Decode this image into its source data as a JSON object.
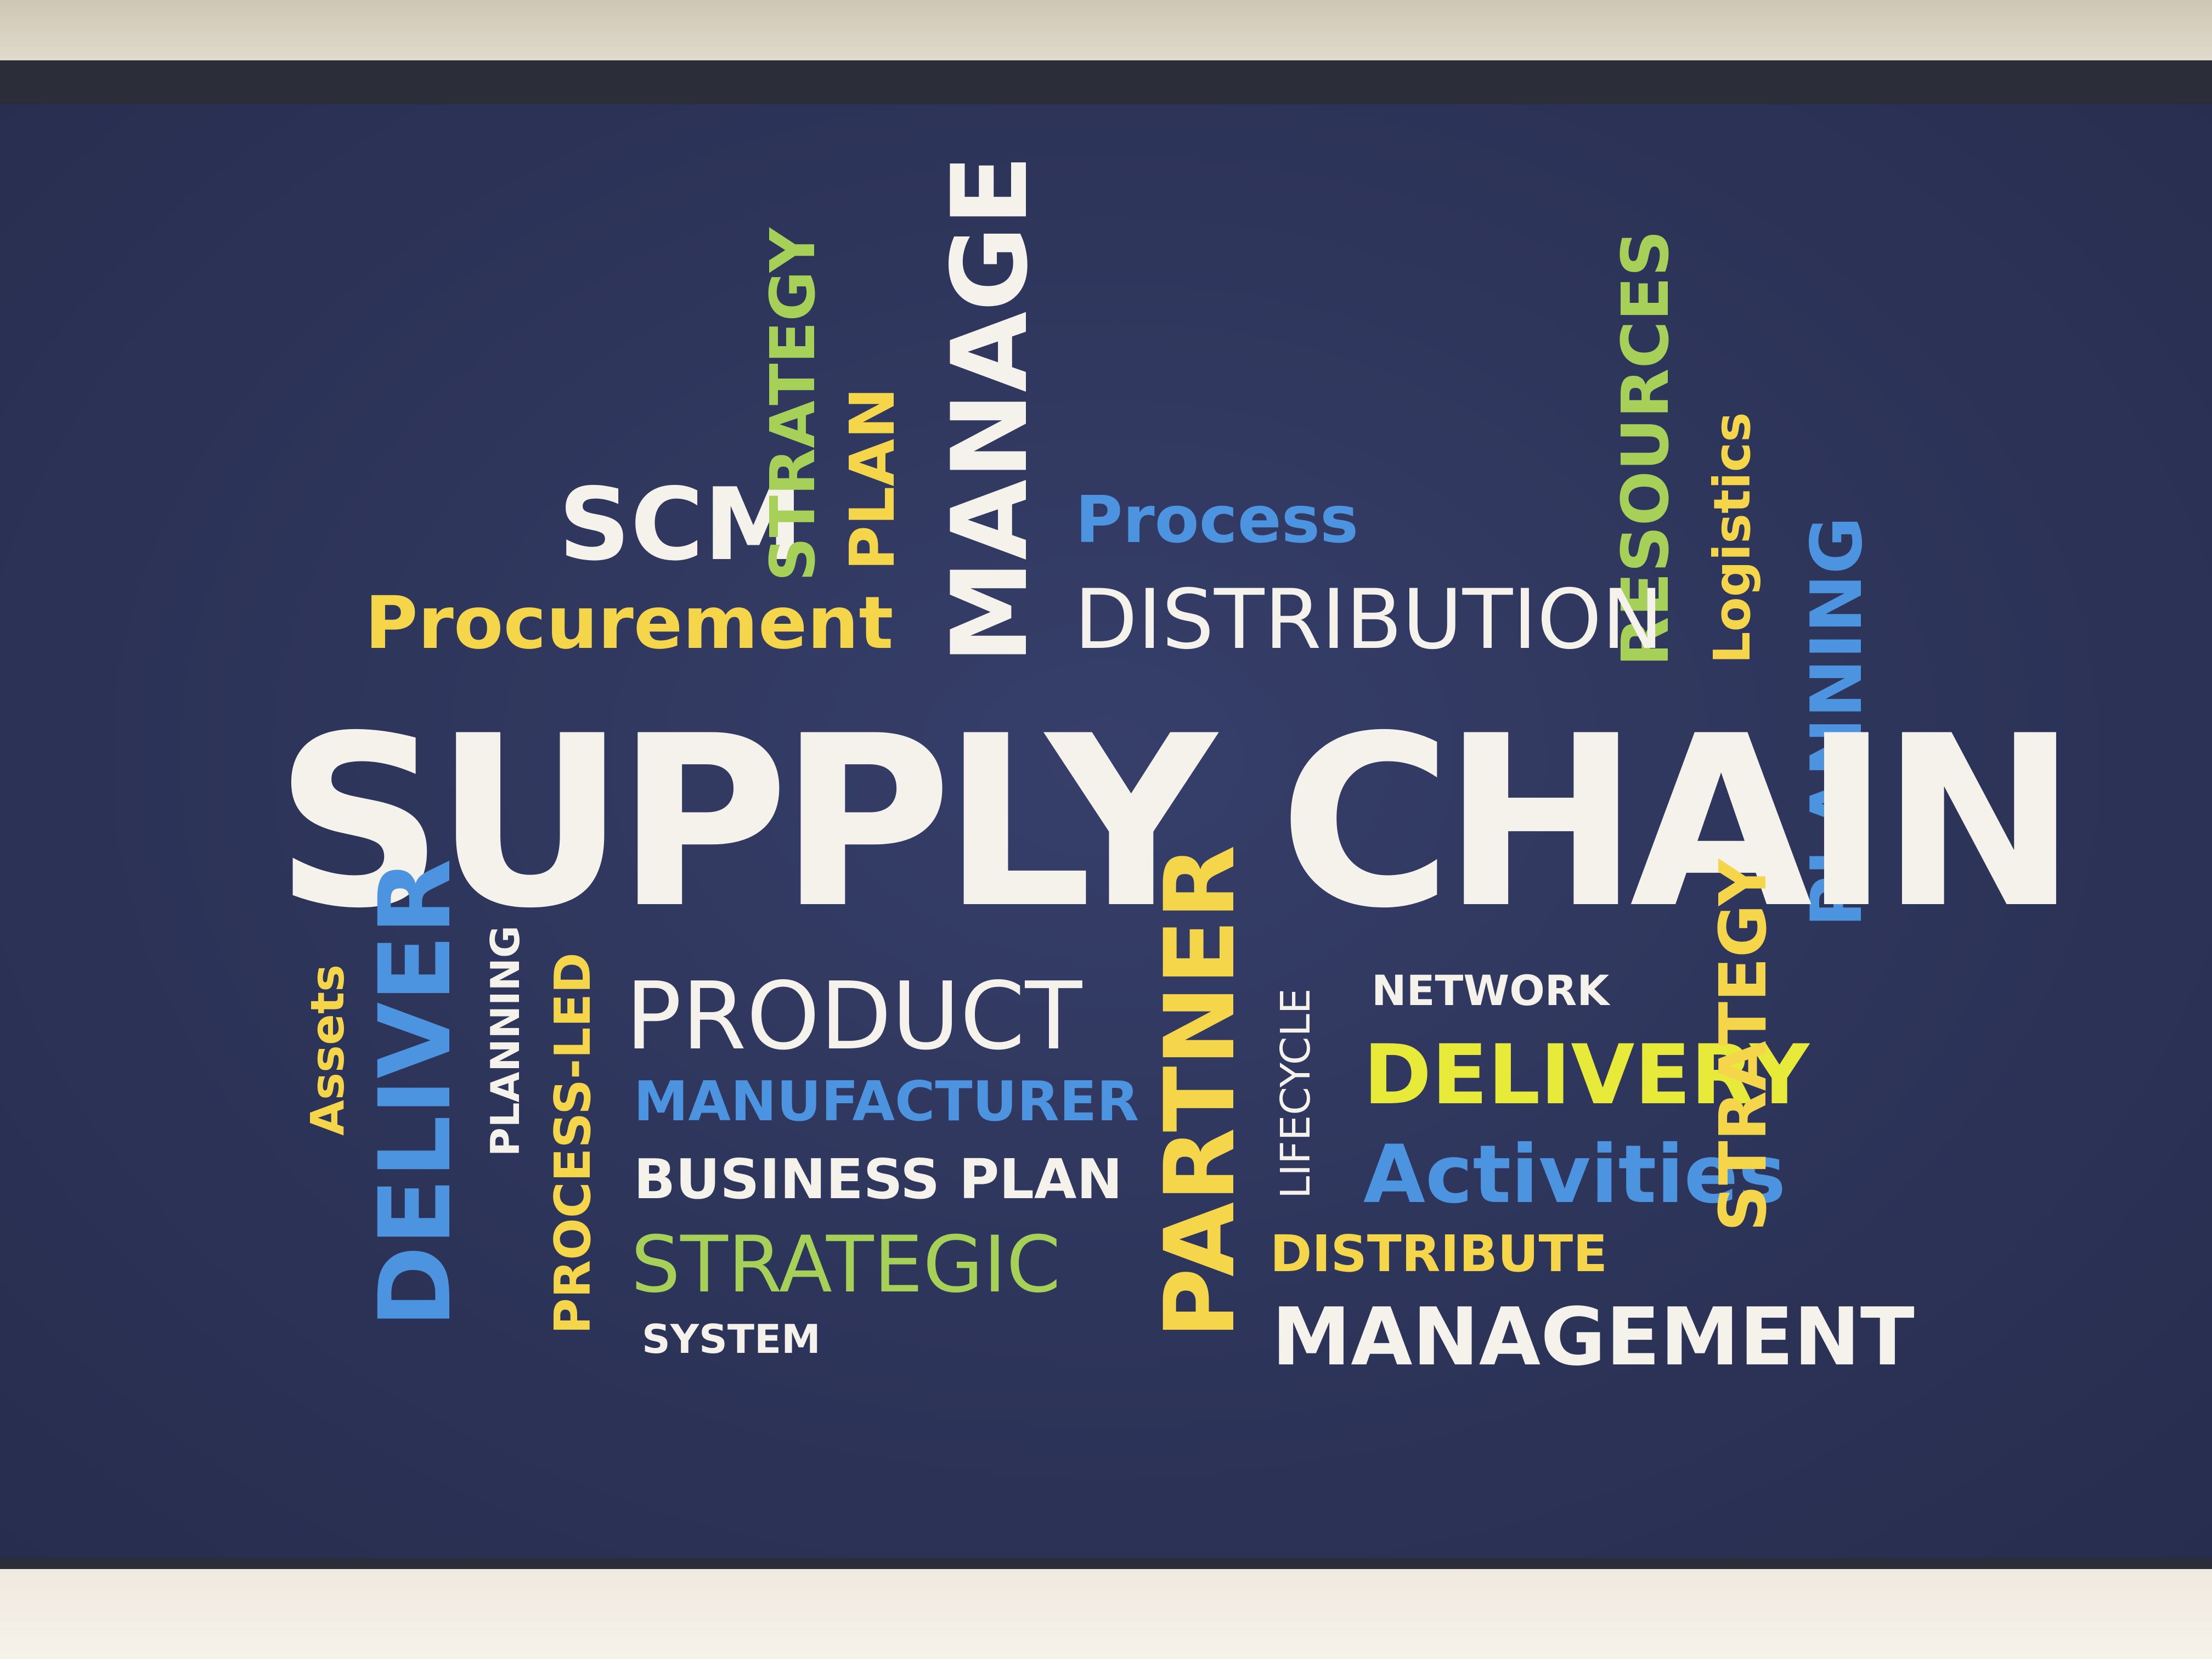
{
  "poster": {
    "scm": "SCM",
    "strategy_top": "STRATEGY",
    "plan": "PLAN",
    "manage": "MANAGE",
    "process": "Process",
    "resources": "RESOURCES",
    "logistics": "Logistics",
    "procurement": "Procurement",
    "distribution": "DISTRIBUTION",
    "planning_right": "PLANNING",
    "supply_chain": "SUPPLY CHAIN",
    "assets": "Assets",
    "deliver": "DELIVER",
    "planning_small": "PLANNING",
    "process_led": "PROCESS-LED",
    "product": "PRODUCT",
    "manufacturer": "MANUFACTURER",
    "business_plan": "BUSINESS PLAN",
    "strategic": "STRATEGIC",
    "system": "SYSTEM",
    "partner": "PARTNER",
    "lifecycle": "LIFECYCLE",
    "network": "NETWORK",
    "delivery": "DELIVERY",
    "activities": "Activities",
    "strategy_right": "STRATEGY",
    "distribute": "DISTRIBUTE",
    "management": "MANAGEMENT"
  },
  "colors": {
    "background": "#2d3459",
    "white": "#f4f2ea",
    "yellow": "#f5d64a",
    "green": "#a6d057",
    "blue": "#4d94e0"
  }
}
